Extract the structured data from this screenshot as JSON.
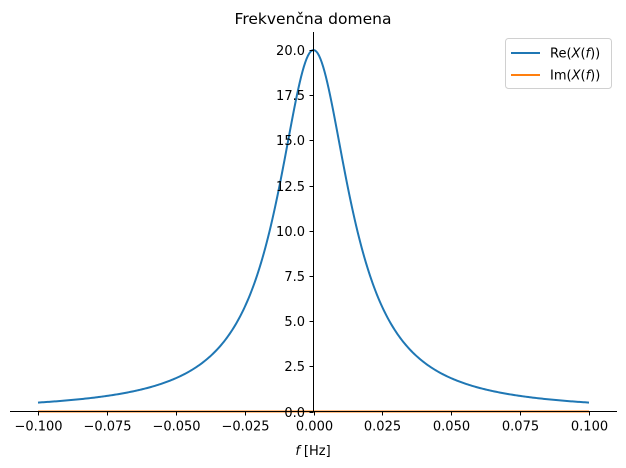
{
  "chart_data": {
    "type": "line",
    "title": "Frekvenčna domena",
    "xlabel": "f [Hz]",
    "xlabel_italic": "f",
    "xlabel_unit": "[Hz]",
    "ylabel": "",
    "xlim": [
      -0.1,
      0.1
    ],
    "ylim": [
      0,
      20.0
    ],
    "x_ticks": [
      -0.1,
      -0.075,
      -0.05,
      -0.025,
      0.0,
      0.025,
      0.05,
      0.075,
      0.1
    ],
    "x_tick_labels": [
      "−0.100",
      "−0.075",
      "−0.050",
      "−0.025",
      "0.000",
      "0.025",
      "0.050",
      "0.075",
      "0.100"
    ],
    "y_ticks": [
      0.0,
      2.5,
      5.0,
      7.5,
      10.0,
      12.5,
      15.0,
      17.5,
      20.0
    ],
    "y_tick_labels": [
      "0.0",
      "2.5",
      "5.0",
      "7.5",
      "10.0",
      "12.5",
      "15.0",
      "17.5",
      "20.0"
    ],
    "grid": false,
    "spines": "centered axes (left spine at x=0, bottom spine at y=0)",
    "legend_position": "upper right",
    "series": [
      {
        "name": "Re(X(f))",
        "color": "#1f77b4",
        "x": [
          -0.1,
          -0.09,
          -0.08,
          -0.07,
          -0.06,
          -0.05,
          -0.04,
          -0.035,
          -0.03,
          -0.025,
          -0.02,
          -0.015,
          -0.01,
          -0.005,
          0.0,
          0.005,
          0.01,
          0.015,
          0.02,
          0.025,
          0.03,
          0.035,
          0.04,
          0.05,
          0.06,
          0.07,
          0.08,
          0.09,
          0.1
        ],
        "values": [
          0.49,
          0.6,
          0.76,
          0.99,
          1.33,
          1.84,
          2.73,
          3.42,
          4.39,
          5.77,
          7.78,
          10.58,
          14.34,
          18.04,
          20.0,
          18.04,
          14.34,
          10.58,
          7.78,
          5.77,
          4.39,
          3.42,
          2.73,
          1.84,
          1.33,
          0.99,
          0.76,
          0.6,
          0.49
        ]
      },
      {
        "name": "Im(X(f))",
        "color": "#ff7f0e",
        "x": [
          -0.1,
          0.1
        ],
        "values": [
          0.0,
          0.0
        ]
      }
    ]
  },
  "legend": {
    "items": [
      {
        "prefix": "Re(",
        "var": "X",
        "mid": "(",
        "arg": "f",
        "suffix": "))"
      },
      {
        "prefix": "Im(",
        "var": "X",
        "mid": "(",
        "arg": "f",
        "suffix": "))"
      }
    ]
  }
}
